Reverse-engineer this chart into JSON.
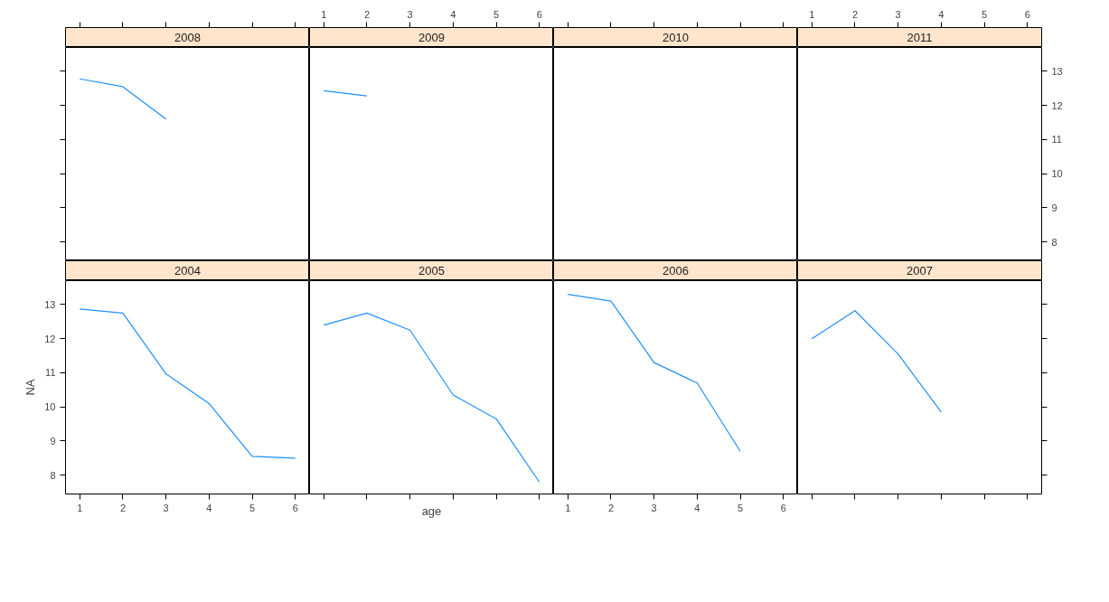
{
  "chart_data": [
    {
      "type": "line",
      "title": "2008",
      "x": [
        1,
        2,
        3
      ],
      "values": [
        12.78,
        12.55,
        11.6
      ],
      "color": "#1e90ff",
      "xlim": [
        0.67,
        6.33
      ],
      "ylim": [
        7.45,
        13.7
      ],
      "xticks": [
        1,
        2,
        3,
        4,
        5,
        6
      ],
      "yticks": [
        8,
        9,
        10,
        11,
        12,
        13
      ],
      "tick_labels": false
    },
    {
      "type": "line",
      "title": "2009",
      "x": [
        1,
        2
      ],
      "values": [
        12.43,
        12.28
      ],
      "color": "#1e90ff",
      "xlim": [
        0.67,
        6.33
      ],
      "ylim": [
        7.45,
        13.7
      ],
      "xticks": [
        1,
        2,
        3,
        4,
        5,
        6
      ],
      "tick_labels": "x"
    },
    {
      "type": "line",
      "title": "2010",
      "xlim": [
        0.67,
        6.33
      ],
      "ylim": [
        7.45,
        13.7
      ],
      "xticks": [
        1,
        2,
        3,
        4,
        5,
        6
      ],
      "tick_labels": false
    },
    {
      "type": "line",
      "title": "2011",
      "xlim": [
        0.67,
        6.33
      ],
      "ylim": [
        7.45,
        13.7
      ],
      "xticks": [
        1,
        2,
        3,
        4,
        5,
        6
      ],
      "yticks": [
        8,
        9,
        10,
        11,
        12,
        13
      ]
    },
    {
      "type": "line",
      "title": "2004",
      "ylabel": "NA",
      "x": [
        1,
        2,
        3,
        4,
        5,
        6
      ],
      "values": [
        12.87,
        12.75,
        10.97,
        10.1,
        8.55,
        8.5
      ],
      "color": "#1e90ff",
      "xlim": [
        0.67,
        6.33
      ],
      "ylim": [
        7.45,
        13.7
      ],
      "xticks": [
        1,
        2,
        3,
        4,
        5,
        6
      ],
      "yticks": [
        8,
        9,
        10,
        11,
        12,
        13
      ]
    },
    {
      "type": "line",
      "title": "2005",
      "xlabel": "age",
      "x": [
        1,
        2,
        3,
        4,
        5,
        6
      ],
      "values": [
        12.4,
        12.75,
        12.25,
        10.35,
        9.65,
        7.8
      ],
      "color": "#1e90ff",
      "xlim": [
        0.67,
        6.33
      ],
      "ylim": [
        7.45,
        13.7
      ],
      "xticks": [
        1,
        2,
        3,
        4,
        5,
        6
      ],
      "tick_labels": false
    },
    {
      "type": "line",
      "title": "2006",
      "x": [
        1,
        2,
        3,
        4,
        5
      ],
      "values": [
        13.3,
        13.1,
        11.3,
        10.7,
        8.7
      ],
      "color": "#1e90ff",
      "xlim": [
        0.67,
        6.33
      ],
      "ylim": [
        7.45,
        13.7
      ],
      "xticks": [
        1,
        2,
        3,
        4,
        5,
        6
      ],
      "tick_labels": "x"
    },
    {
      "type": "line",
      "title": "2007",
      "x": [
        1,
        2,
        3,
        4
      ],
      "values": [
        12.0,
        12.82,
        11.55,
        9.85
      ],
      "color": "#1e90ff",
      "xlim": [
        0.67,
        6.33
      ],
      "ylim": [
        7.45,
        13.7
      ],
      "xticks": [
        1,
        2,
        3,
        4,
        5,
        6
      ],
      "yticks": [
        8,
        9,
        10,
        11,
        12,
        13
      ],
      "tick_labels": false
    }
  ]
}
